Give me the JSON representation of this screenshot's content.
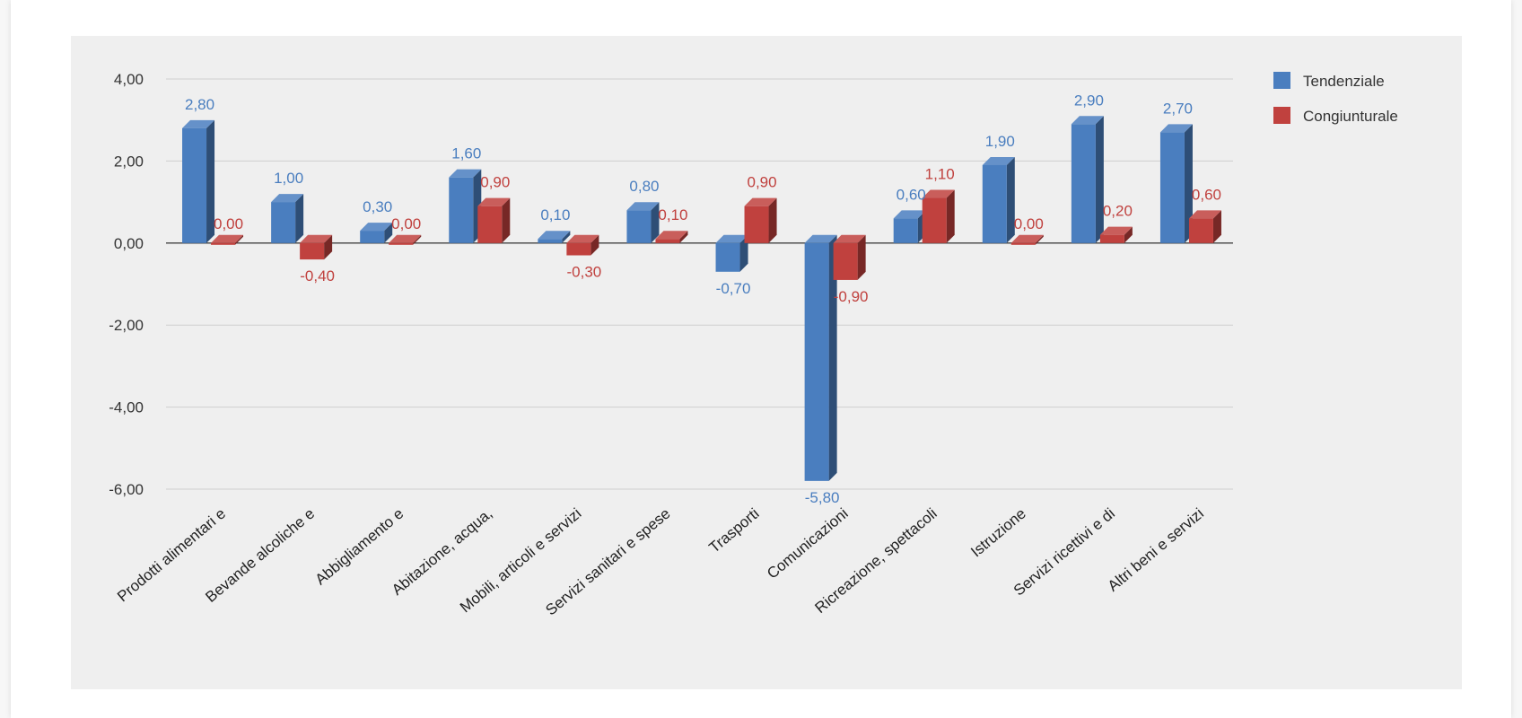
{
  "chart_data": {
    "type": "bar",
    "categories": [
      "Prodotti alimentari e",
      "Bevande alcoliche e",
      "Abbigliamento e",
      "Abitazione, acqua,",
      "Mobili, articoli e servizi",
      "Servizi sanitari e spese",
      "Trasporti",
      "Comunicazioni",
      "Ricreazione, spettacoli",
      "Istruzione",
      "Servizi ricettivi e di",
      "Altri beni e servizi"
    ],
    "series": [
      {
        "name": "Tendenziale",
        "color": "#4a7ebf",
        "values": [
          2.8,
          1.0,
          0.3,
          1.6,
          0.1,
          0.8,
          -0.7,
          -5.8,
          0.6,
          1.9,
          2.9,
          2.7
        ],
        "labels": [
          "2,80",
          "1,00",
          "0,30",
          "1,60",
          "0,10",
          "0,80",
          "-0,70",
          "-5,80",
          "0,60",
          "1,90",
          "2,90",
          "2,70"
        ]
      },
      {
        "name": "Congiunturale",
        "color": "#c0413e",
        "values": [
          0.0,
          -0.4,
          0.0,
          0.9,
          -0.3,
          0.1,
          0.9,
          -0.9,
          1.1,
          0.0,
          0.2,
          0.6
        ],
        "labels": [
          "0,00",
          "-0,40",
          "0,00",
          "0,90",
          "-0,30",
          "0,10",
          "0,90",
          "-0,90",
          "1,10",
          "0,00",
          "0,20",
          "0,60"
        ]
      }
    ],
    "y_ticks": [
      {
        "value": 4,
        "label": "4,00"
      },
      {
        "value": 2,
        "label": "2,00"
      },
      {
        "value": 0,
        "label": "0,00"
      },
      {
        "value": -2,
        "label": "-2,00"
      },
      {
        "value": -4,
        "label": "-4,00"
      },
      {
        "value": -6,
        "label": "-6,00"
      }
    ],
    "ylim": [
      -6,
      4
    ],
    "grid": true,
    "legend_position": "top-right",
    "colors": {
      "plot_background": "#efefef",
      "grid": "#cfcfcf",
      "axis": "#444444"
    }
  }
}
